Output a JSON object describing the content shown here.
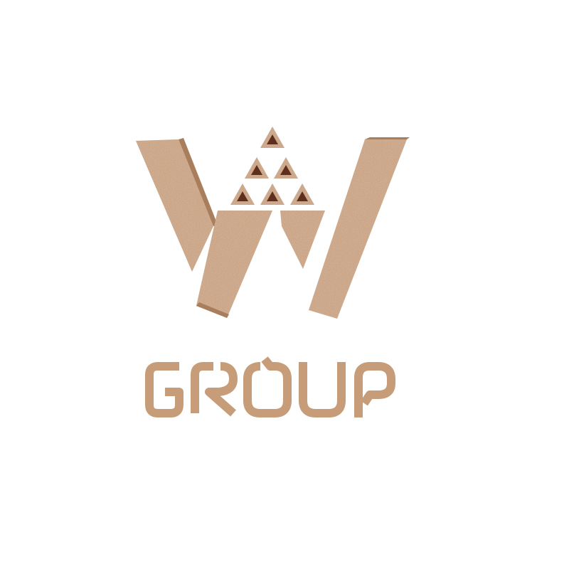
{
  "logo": {
    "letter": "W",
    "wordmark": "GROUP",
    "colors": {
      "cardboard": "#c49a78",
      "cardboard_dark": "#a97e5c",
      "cardboard_light": "#d7b598",
      "wordmark": "#c79d79",
      "hole": "#5e2f1d",
      "background": "#ffffff"
    }
  }
}
